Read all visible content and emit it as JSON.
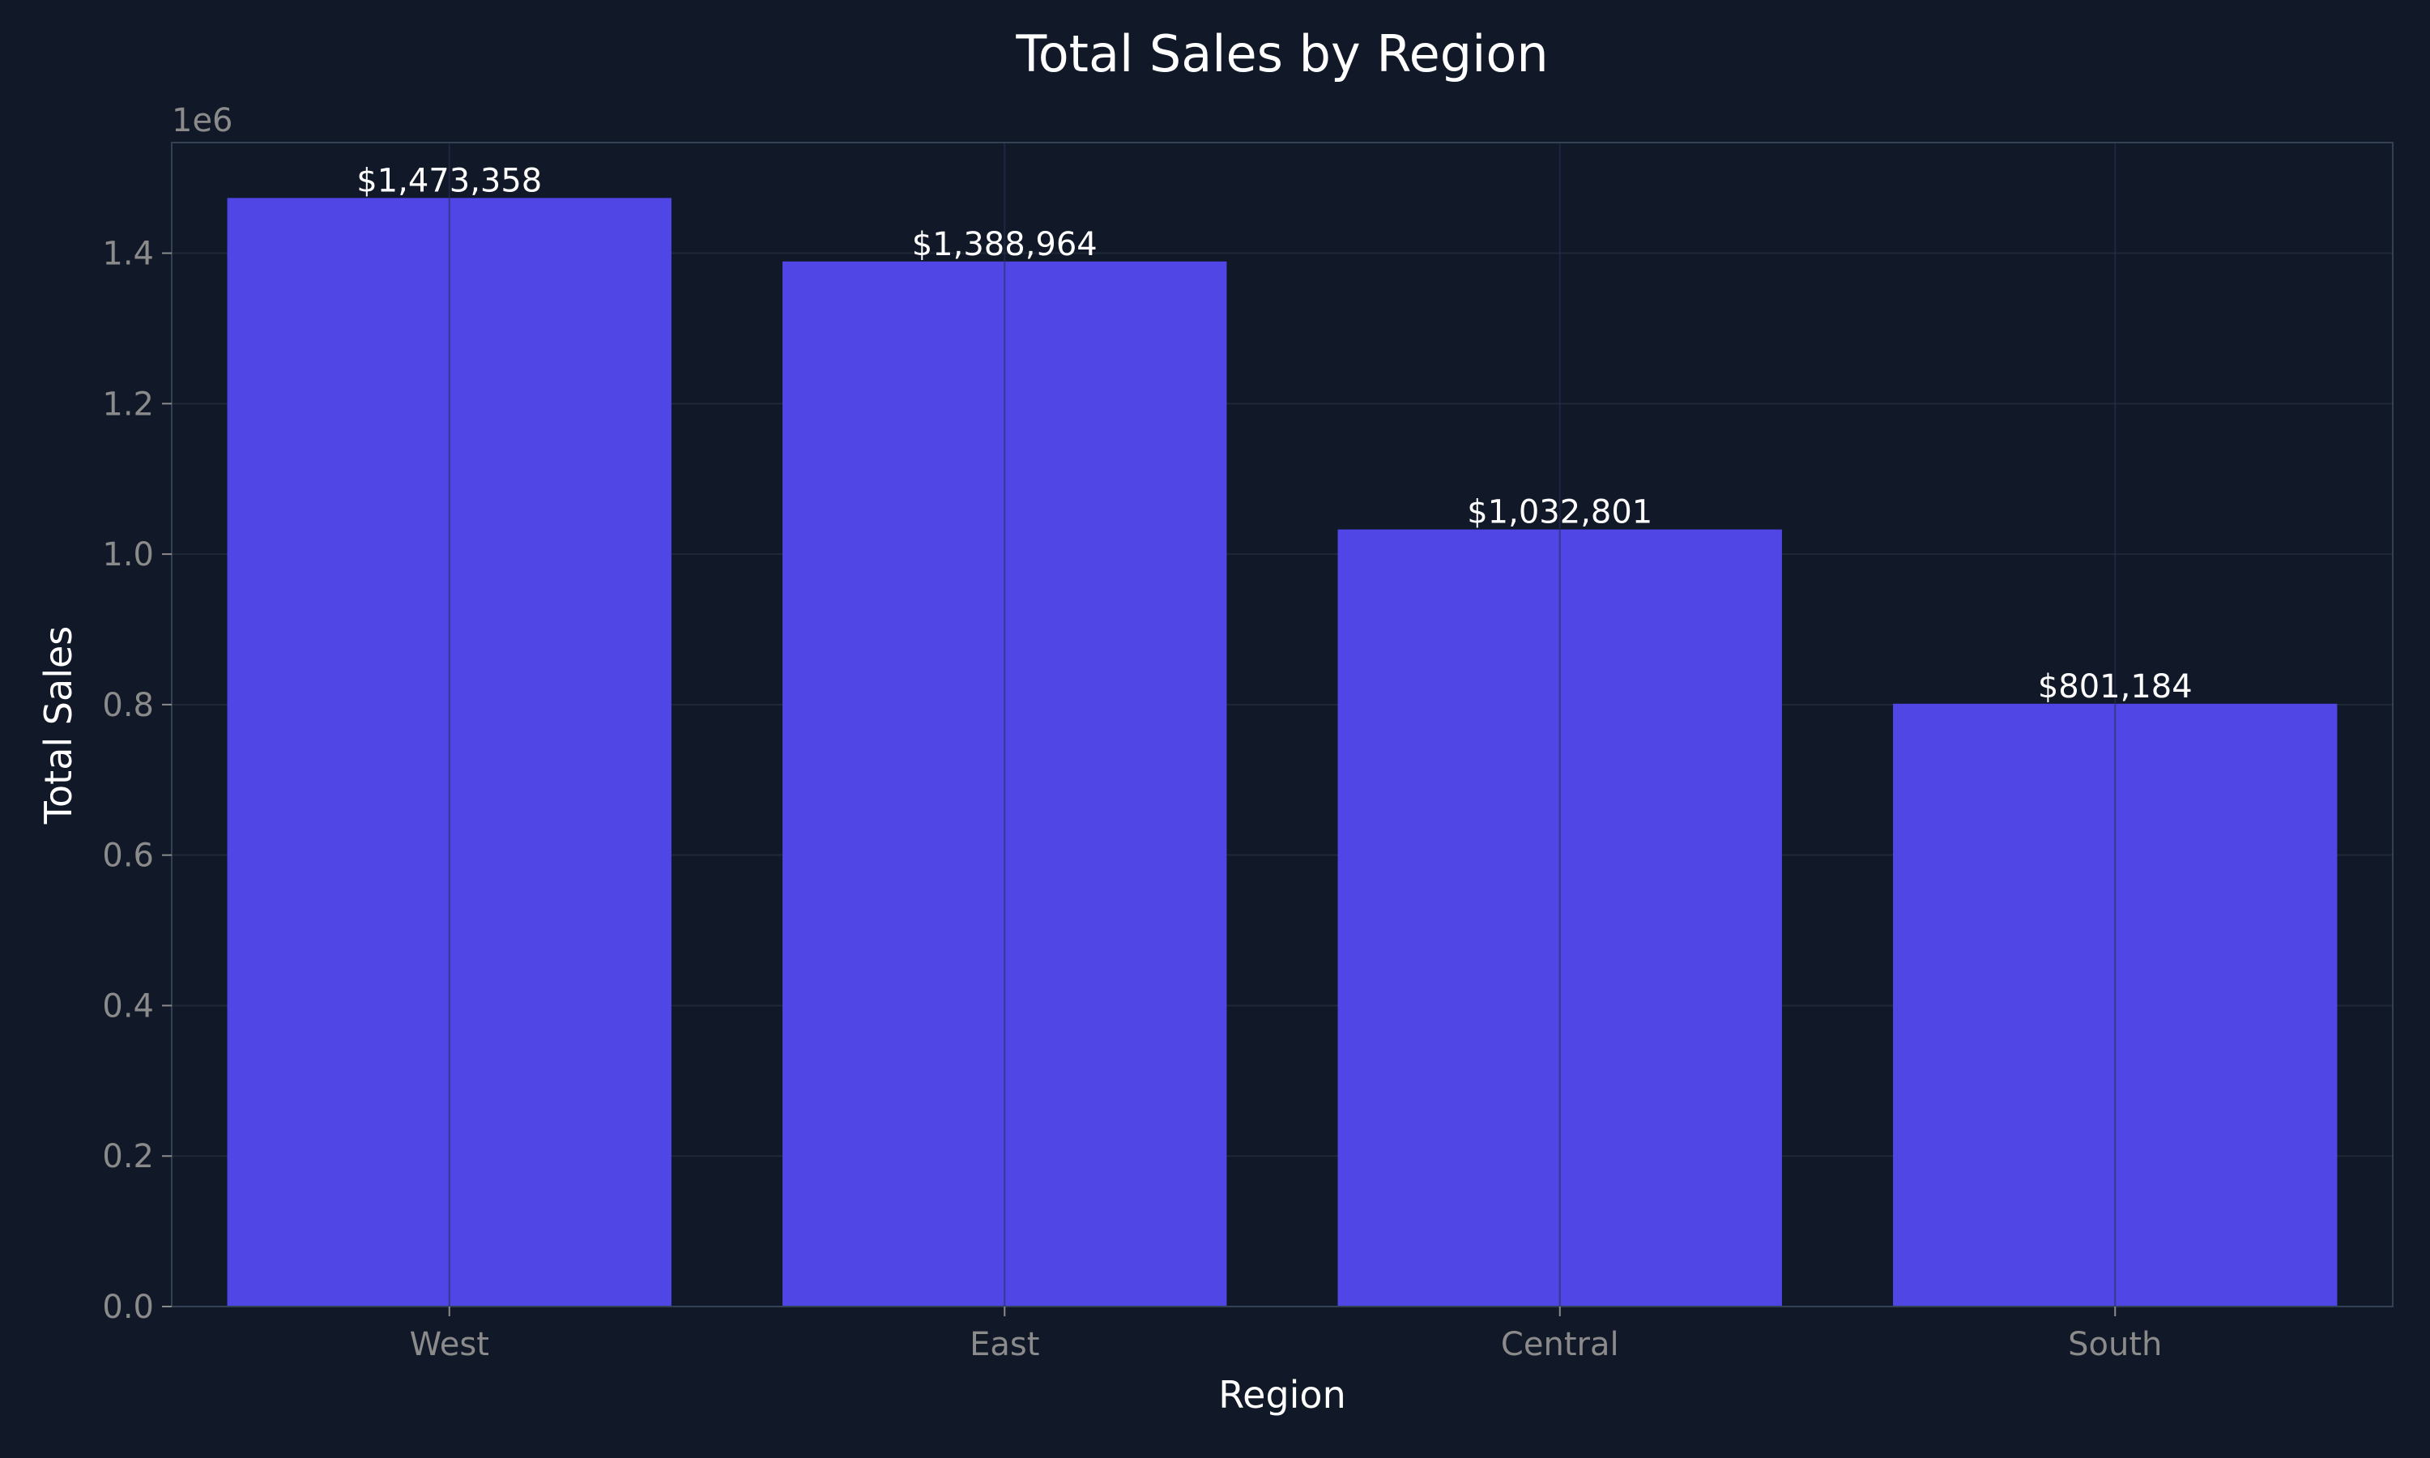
{
  "chart_data": {
    "type": "bar",
    "title": "Total Sales by Region",
    "xlabel": "Region",
    "ylabel": "Total Sales",
    "offset_label": "1e6",
    "categories": [
      "West",
      "East",
      "Central",
      "South"
    ],
    "values": [
      1473358,
      1388964,
      1032801,
      801184
    ],
    "value_labels": [
      "$1,473,358",
      "$1,388,964",
      "$1,032,801",
      "$801,184"
    ],
    "ylim": [
      0,
      1547000
    ],
    "yticks": [
      0,
      200000,
      400000,
      600000,
      800000,
      1000000,
      1200000,
      1400000
    ],
    "ytick_labels": [
      "0.0",
      "0.2",
      "0.4",
      "0.6",
      "0.8",
      "1.0",
      "1.2",
      "1.4"
    ],
    "grid": true,
    "colors": {
      "background": "#111827",
      "bar": "#4f46e5",
      "grid": "#1f2937",
      "axis": "#334155",
      "tick_text": "#8b8b8b",
      "title_text": "#ffffff",
      "label_text": "#ffffff",
      "value_text": "#ffffff"
    }
  }
}
